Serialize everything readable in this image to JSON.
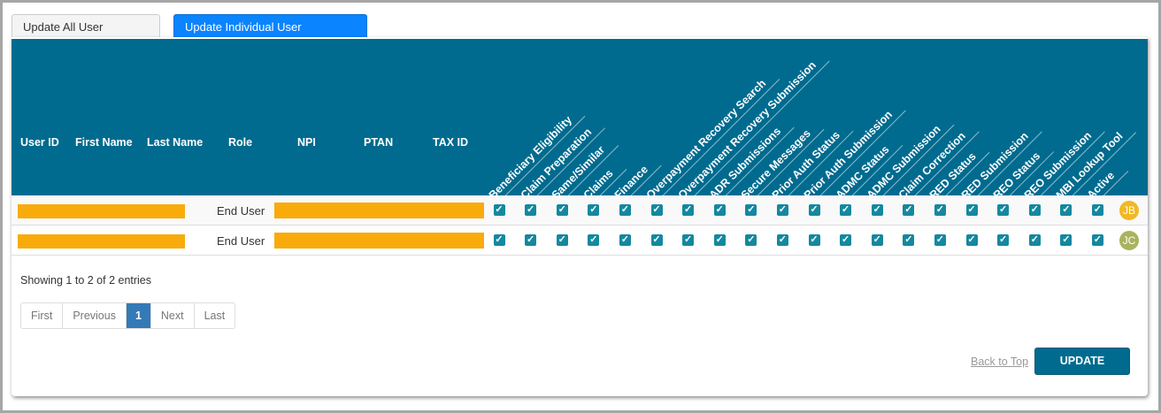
{
  "tabs": [
    {
      "label": "Update All User Permissions",
      "active": false
    },
    {
      "label": "Update Individual User Permissions",
      "active": true
    }
  ],
  "table": {
    "columns": [
      "User ID",
      "First Name",
      "Last Name",
      "Role",
      "NPI",
      "PTAN",
      "TAX ID"
    ],
    "permission_columns": [
      "Beneficiary Eligibility",
      "Claim Preparation",
      "Same/Similar",
      "Claims",
      "Finance",
      "Overpayment Recovery Search",
      "Overpayment Recovery Submission",
      "ADR Submissions",
      "Secure Messages",
      "Prior Auth Status",
      "Prior Auth Submission",
      "ADMC Status",
      "ADMC Submission",
      "Claim Correction",
      "RED Status",
      "RED Submission",
      "REO Status",
      "REO Submission",
      "MBI Lookup Tool",
      "Active"
    ],
    "rows": [
      {
        "role": "End User",
        "initials": "JB",
        "avatar_color": "#f2b824",
        "checked": true
      },
      {
        "role": "End User",
        "initials": "JC",
        "avatar_color": "#a9b35f",
        "checked": true
      }
    ],
    "redaction_color": "#f8ab0a",
    "header_color": "#006b8f"
  },
  "info": "Showing 1 to 2 of 2 entries",
  "pagination": {
    "first": "First",
    "previous": "Previous",
    "current": "1",
    "next": "Next",
    "last": "Last"
  },
  "footer": {
    "back_to_top": "Back to Top",
    "update": "UPDATE"
  },
  "icons": {
    "checkbox": "checkbox-checked-icon"
  }
}
